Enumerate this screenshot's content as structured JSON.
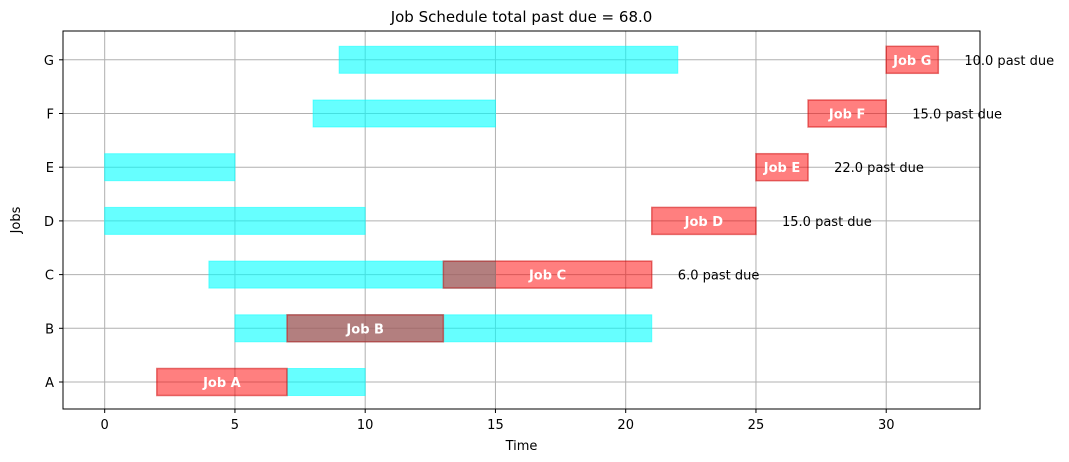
{
  "chart_data": {
    "type": "gantt",
    "title": "Job Schedule total past due = 68.0",
    "xlabel": "Time",
    "ylabel": "Jobs",
    "xlim": [
      -1.6,
      33.6
    ],
    "x_ticks": [
      0,
      5,
      10,
      15,
      20,
      25,
      30
    ],
    "grid": true,
    "jobs": [
      "A",
      "B",
      "C",
      "D",
      "E",
      "F",
      "G"
    ],
    "windows": [
      {
        "job": "A",
        "start": 7,
        "end": 10
      },
      {
        "job": "B",
        "start": 5,
        "end": 21
      },
      {
        "job": "C",
        "start": 4,
        "end": 15
      },
      {
        "job": "D",
        "start": 0,
        "end": 10
      },
      {
        "job": "E",
        "start": 0,
        "end": 5
      },
      {
        "job": "F",
        "start": 8,
        "end": 15
      },
      {
        "job": "G",
        "start": 9,
        "end": 22
      }
    ],
    "scheduled": [
      {
        "job": "A",
        "label": "Job A",
        "start": 2,
        "end": 7
      },
      {
        "job": "B",
        "label": "Job B",
        "start": 7,
        "end": 13
      },
      {
        "job": "C",
        "label": "Job C",
        "start": 13,
        "end": 21
      },
      {
        "job": "D",
        "label": "Job D",
        "start": 21,
        "end": 25
      },
      {
        "job": "E",
        "label": "Job E",
        "start": 25,
        "end": 27
      },
      {
        "job": "F",
        "label": "Job F",
        "start": 27,
        "end": 30
      },
      {
        "job": "G",
        "label": "Job G",
        "start": 30,
        "end": 32
      }
    ],
    "past_due_labels": [
      {
        "job": "C",
        "text": "6.0 past due"
      },
      {
        "job": "D",
        "text": "15.0 past due"
      },
      {
        "job": "E",
        "text": "22.0 past due"
      },
      {
        "job": "F",
        "text": "15.0 past due"
      },
      {
        "job": "G",
        "text": "10.0 past due"
      }
    ],
    "colors": {
      "window": "#00ffff",
      "scheduled": "#ff0000",
      "grid": "#b0b0b0",
      "axis": "#000000"
    }
  }
}
